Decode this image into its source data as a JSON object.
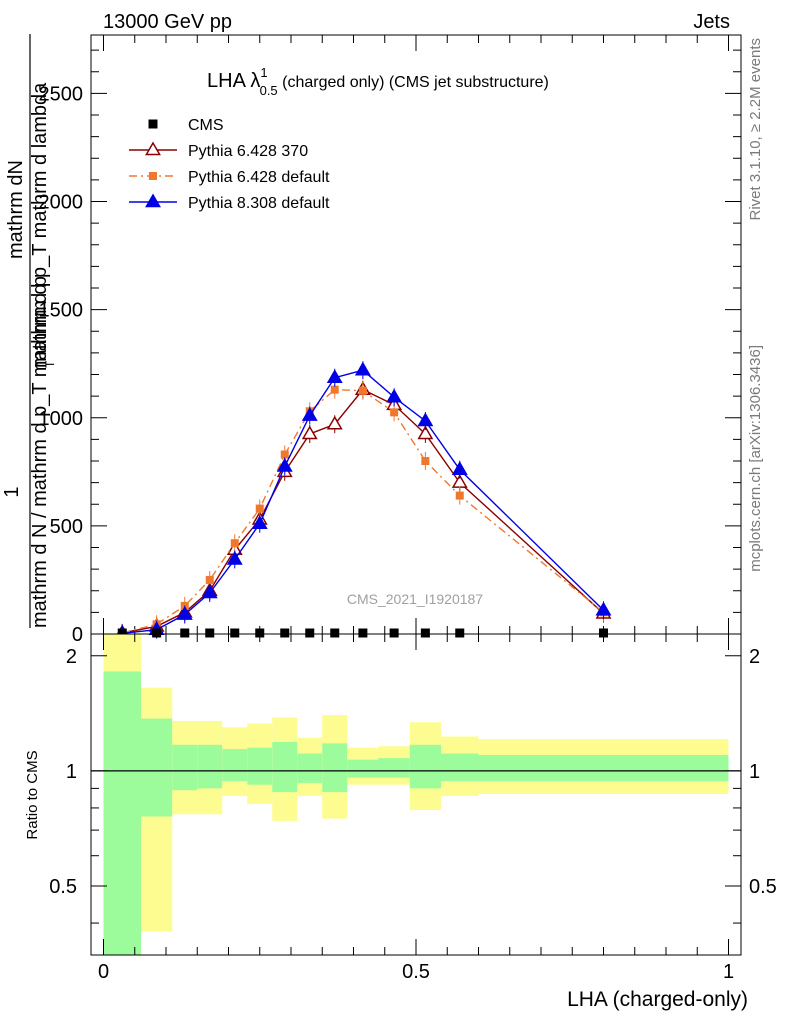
{
  "header": {
    "energy_label": "13000 GeV pp",
    "process_label": "Jets"
  },
  "side": {
    "rivet_label": "Rivet 3.1.10, ≥ 2.2M events",
    "mcplots_label": "mcplots.cern.ch [arXiv:1306.3436]"
  },
  "watermark": "CMS_2021_I1920187",
  "colors": {
    "data": "#000000",
    "py6_370": "#8b0000",
    "py6_default": "#f0782d",
    "py8_default": "#0000e6",
    "band_inner": "#9cfc9c",
    "band_outer": "#fcfc90"
  },
  "main_chart": {
    "type": "line",
    "title_main": "LHA λ",
    "title_sup": "1",
    "title_sub": "0.5",
    "title_rest": " (charged only) (CMS jet substructure)",
    "ylabel_num": "1",
    "ylabel_top_a": "mathrm dN",
    "ylabel_top_b": "mathrm d p_T mathrm d lambda",
    "ylabel_bottom_a": "mathrm d N / mathrm d p_T mathrm d p",
    "ylabel_bottom_b": "T",
    "xlim": [
      -0.02,
      1.02
    ],
    "ylim": [
      0,
      2770
    ],
    "yticks": [
      {
        "value": 0,
        "label": "0"
      },
      {
        "value": 500,
        "label": "500"
      },
      {
        "value": 1000,
        "label": "1000"
      },
      {
        "value": 1500,
        "label": "1500"
      },
      {
        "value": 2000,
        "label": "2000"
      },
      {
        "value": 2500,
        "label": "2500"
      }
    ],
    "legend": [
      {
        "key": "cms",
        "label": "CMS"
      },
      {
        "key": "py6_370",
        "label": "Pythia 6.428 370"
      },
      {
        "key": "py6_default",
        "label": "Pythia 6.428 default"
      },
      {
        "key": "py8_default",
        "label": "Pythia 8.308 default"
      }
    ],
    "cms": {
      "x": [
        0.03,
        0.085,
        0.13,
        0.17,
        0.21,
        0.25,
        0.29,
        0.33,
        0.37,
        0.415,
        0.465,
        0.515,
        0.57,
        0.8
      ],
      "y": [
        0,
        0,
        0,
        0,
        0,
        0,
        0,
        0,
        0,
        0,
        0,
        0,
        0,
        0
      ]
    },
    "series": [
      {
        "name": "Pythia 6.428 370",
        "key": "py6_370",
        "x": [
          0.03,
          0.085,
          0.13,
          0.17,
          0.21,
          0.25,
          0.29,
          0.33,
          0.37,
          0.415,
          0.465,
          0.515,
          0.57,
          0.8
        ],
        "y": [
          5,
          35,
          100,
          200,
          390,
          530,
          750,
          925,
          970,
          1130,
          1060,
          925,
          700,
          95
        ]
      },
      {
        "name": "Pythia 6.428 default",
        "key": "py6_default",
        "x": [
          0.03,
          0.085,
          0.13,
          0.17,
          0.21,
          0.25,
          0.29,
          0.33,
          0.37,
          0.415,
          0.465,
          0.515,
          0.57,
          0.8
        ],
        "y": [
          5,
          45,
          130,
          250,
          420,
          580,
          830,
          1030,
          1130,
          1125,
          1025,
          800,
          640,
          100
        ]
      },
      {
        "name": "Pythia 8.308 default",
        "key": "py8_default",
        "x": [
          0.03,
          0.085,
          0.13,
          0.17,
          0.21,
          0.25,
          0.29,
          0.33,
          0.37,
          0.415,
          0.465,
          0.515,
          0.57,
          0.8
        ],
        "y": [
          3,
          20,
          90,
          190,
          345,
          510,
          775,
          1010,
          1185,
          1220,
          1095,
          985,
          760,
          110
        ]
      }
    ]
  },
  "ratio_chart": {
    "type": "area",
    "ylabel": "Ratio to CMS",
    "xlabel": "LHA (charged-only)",
    "xlim": [
      -0.02,
      1.02
    ],
    "ylim": [
      0.33,
      2.28
    ],
    "reference": 1,
    "xticks": [
      {
        "value": 0,
        "label": "0"
      },
      {
        "value": 0.5,
        "label": "0.5"
      },
      {
        "value": 1,
        "label": "1"
      }
    ],
    "yticks": [
      {
        "value": 0.5,
        "label": "0.5"
      },
      {
        "value": 1,
        "label": "1"
      },
      {
        "value": 2,
        "label": "2"
      }
    ],
    "bands": [
      {
        "x0": 0.0,
        "x1": 0.06,
        "inner": [
          0.33,
          1.82
        ],
        "outer": [
          0.33,
          2.28
        ]
      },
      {
        "x0": 0.06,
        "x1": 0.11,
        "inner": [
          0.76,
          1.37
        ],
        "outer": [
          0.38,
          1.65
        ]
      },
      {
        "x0": 0.11,
        "x1": 0.15,
        "inner": [
          0.89,
          1.17
        ],
        "outer": [
          0.77,
          1.35
        ]
      },
      {
        "x0": 0.15,
        "x1": 0.19,
        "inner": [
          0.9,
          1.17
        ],
        "outer": [
          0.77,
          1.35
        ]
      },
      {
        "x0": 0.19,
        "x1": 0.23,
        "inner": [
          0.94,
          1.14
        ],
        "outer": [
          0.86,
          1.3
        ]
      },
      {
        "x0": 0.23,
        "x1": 0.27,
        "inner": [
          0.92,
          1.15
        ],
        "outer": [
          0.82,
          1.33
        ]
      },
      {
        "x0": 0.27,
        "x1": 0.31,
        "inner": [
          0.88,
          1.19
        ],
        "outer": [
          0.74,
          1.38
        ]
      },
      {
        "x0": 0.31,
        "x1": 0.35,
        "inner": [
          0.93,
          1.11
        ],
        "outer": [
          0.86,
          1.22
        ]
      },
      {
        "x0": 0.35,
        "x1": 0.39,
        "inner": [
          0.88,
          1.18
        ],
        "outer": [
          0.75,
          1.4
        ]
      },
      {
        "x0": 0.39,
        "x1": 0.44,
        "inner": [
          0.96,
          1.07
        ],
        "outer": [
          0.92,
          1.15
        ]
      },
      {
        "x0": 0.44,
        "x1": 0.49,
        "inner": [
          0.96,
          1.08
        ],
        "outer": [
          0.92,
          1.16
        ]
      },
      {
        "x0": 0.49,
        "x1": 0.54,
        "inner": [
          0.9,
          1.17
        ],
        "outer": [
          0.79,
          1.34
        ]
      },
      {
        "x0": 0.54,
        "x1": 0.6,
        "inner": [
          0.94,
          1.11
        ],
        "outer": [
          0.86,
          1.23
        ]
      },
      {
        "x0": 0.6,
        "x1": 1.0,
        "inner": [
          0.94,
          1.1
        ],
        "outer": [
          0.87,
          1.21
        ]
      }
    ]
  }
}
